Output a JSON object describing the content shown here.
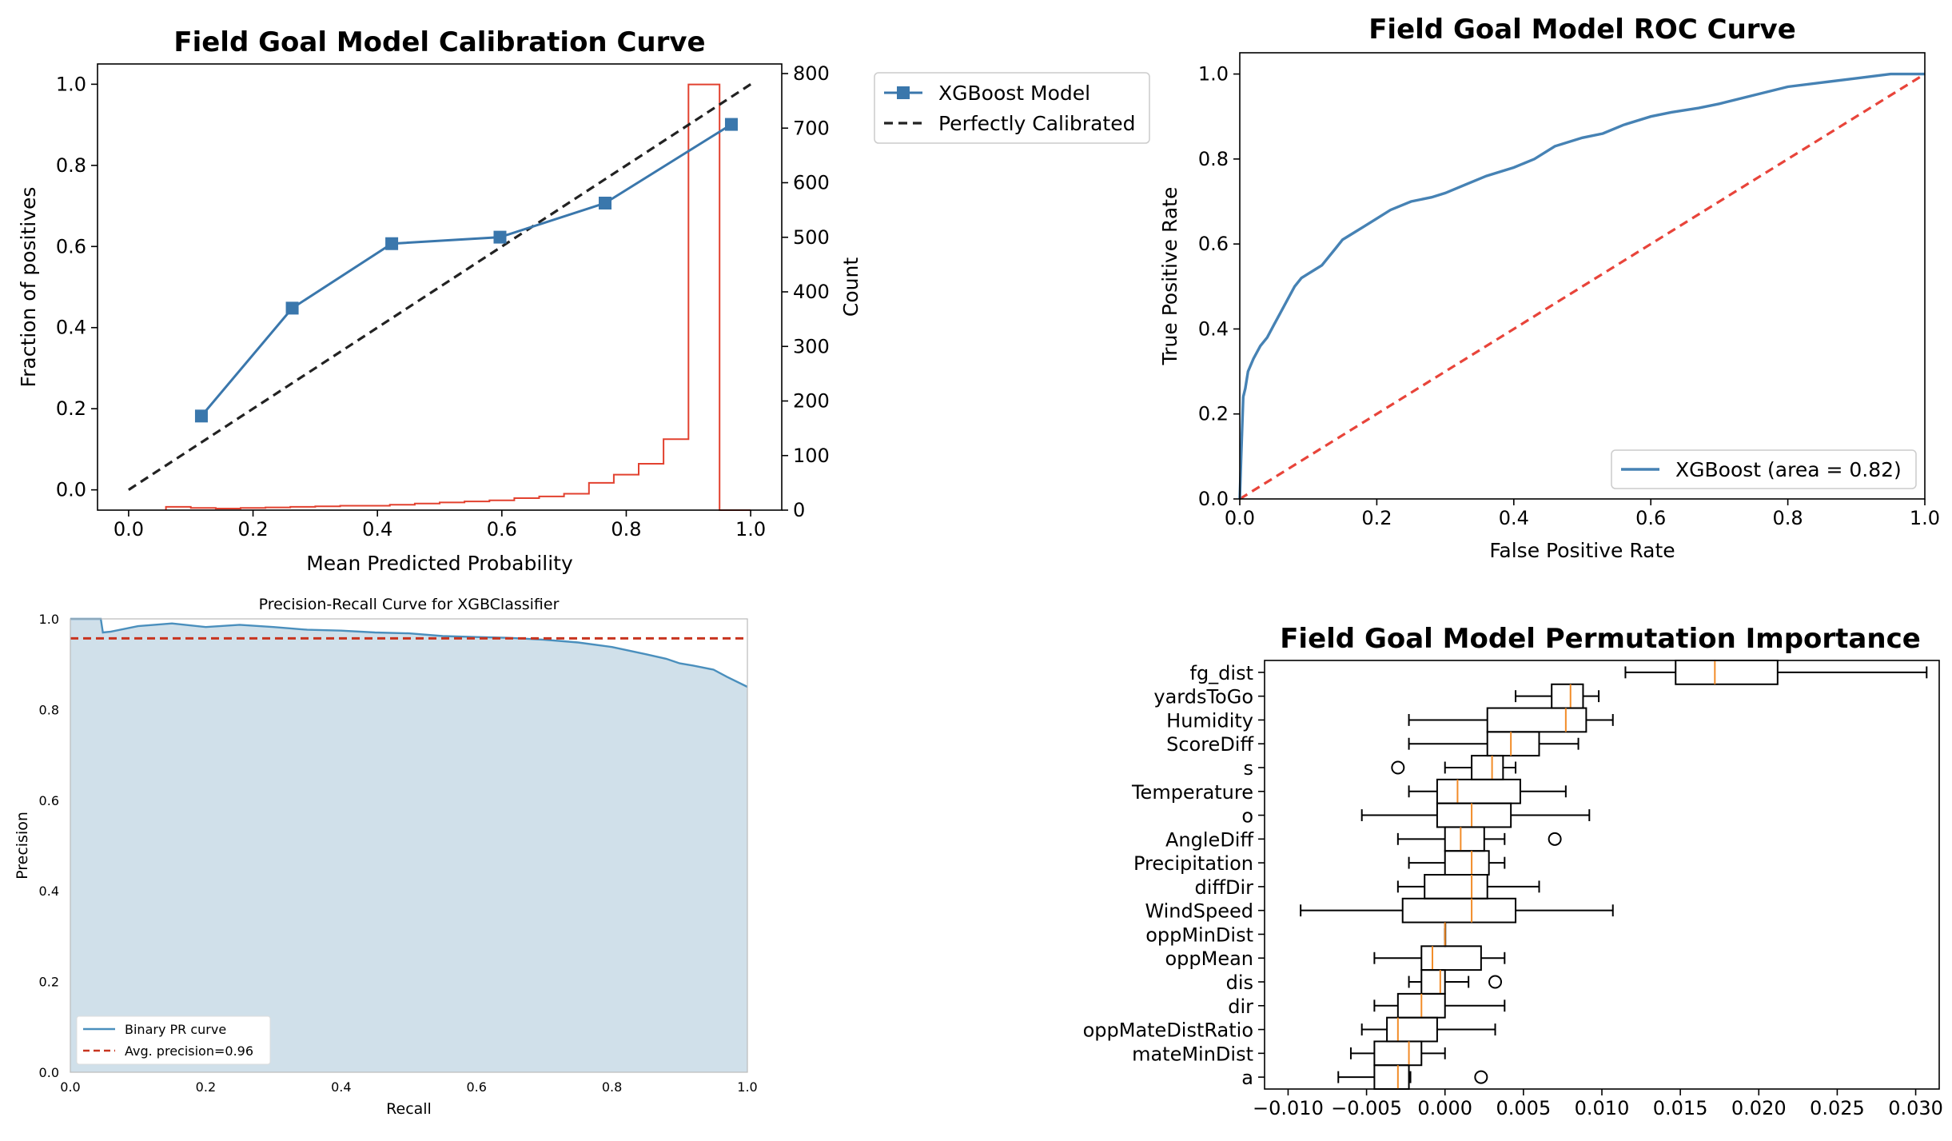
{
  "chart_data": [
    {
      "type": "line",
      "title": "Field Goal Model Calibration Curve",
      "xlabel": "Mean Predicted Probability",
      "ylabel": "Fraction of positives",
      "y2label": "Count",
      "xlim": [
        -0.05,
        1.05
      ],
      "ylim": [
        -0.05,
        1.05
      ],
      "y2lim": [
        0,
        800
      ],
      "xticks": [
        "0.0",
        "0.2",
        "0.4",
        "0.6",
        "0.8",
        "1.0"
      ],
      "yticks": [
        "0.0",
        "0.2",
        "0.4",
        "0.6",
        "0.8",
        "1.0"
      ],
      "y2ticks": [
        "0",
        "100",
        "200",
        "300",
        "400",
        "500",
        "600",
        "700",
        "800"
      ],
      "legend_position": "outside-right",
      "series": [
        {
          "name": "XGBoost Model",
          "color": "#3a77ac",
          "marker": "square",
          "x": [
            0.117,
            0.263,
            0.423,
            0.597,
            0.766,
            0.969
          ],
          "y": [
            0.182,
            0.448,
            0.607,
            0.623,
            0.707,
            0.901
          ]
        },
        {
          "name": "Perfectly Calibrated",
          "color": "#222222",
          "dash": "dashed",
          "x": [
            0.0,
            1.0
          ],
          "y": [
            0.0,
            1.0
          ]
        }
      ],
      "histogram": {
        "color": "#e2412f",
        "bin_edges": [
          0.06,
          0.1,
          0.14,
          0.18,
          0.22,
          0.26,
          0.3,
          0.34,
          0.38,
          0.42,
          0.46,
          0.5,
          0.54,
          0.58,
          0.62,
          0.66,
          0.7,
          0.74,
          0.78,
          0.82,
          0.86,
          0.9,
          0.95,
          1.0
        ],
        "counts": [
          6,
          4,
          3,
          4,
          5,
          6,
          7,
          8,
          8,
          10,
          12,
          14,
          16,
          18,
          22,
          25,
          30,
          50,
          65,
          85,
          130,
          780,
          0
        ]
      }
    },
    {
      "type": "line",
      "title": "Field Goal Model ROC Curve",
      "xlabel": "False Positive Rate",
      "ylabel": "True Positive Rate",
      "xlim": [
        0,
        1
      ],
      "ylim": [
        0,
        1.05
      ],
      "xticks": [
        "0.0",
        "0.2",
        "0.4",
        "0.6",
        "0.8",
        "1.0"
      ],
      "yticks": [
        "0.0",
        "0.2",
        "0.4",
        "0.6",
        "0.8",
        "1.0"
      ],
      "legend_position": "lower-right",
      "series": [
        {
          "name": "XGBoost (area = 0.82)",
          "color": "#4682b4",
          "x": [
            0,
            0.002,
            0.005,
            0.008,
            0.012,
            0.02,
            0.03,
            0.04,
            0.05,
            0.06,
            0.07,
            0.08,
            0.09,
            0.1,
            0.11,
            0.12,
            0.13,
            0.14,
            0.15,
            0.16,
            0.18,
            0.2,
            0.22,
            0.25,
            0.28,
            0.3,
            0.33,
            0.36,
            0.4,
            0.43,
            0.46,
            0.5,
            0.53,
            0.56,
            0.6,
            0.63,
            0.67,
            0.7,
            0.75,
            0.8,
            0.85,
            0.9,
            0.95,
            1.0
          ],
          "y": [
            0,
            0.1,
            0.24,
            0.26,
            0.3,
            0.33,
            0.36,
            0.38,
            0.41,
            0.44,
            0.47,
            0.5,
            0.52,
            0.53,
            0.54,
            0.55,
            0.57,
            0.59,
            0.61,
            0.62,
            0.64,
            0.66,
            0.68,
            0.7,
            0.71,
            0.72,
            0.74,
            0.76,
            0.78,
            0.8,
            0.83,
            0.85,
            0.86,
            0.88,
            0.9,
            0.91,
            0.92,
            0.93,
            0.95,
            0.97,
            0.98,
            0.99,
            1.0,
            1.0
          ]
        },
        {
          "name": "",
          "color": "#e8443a",
          "dash": "dashed",
          "x": [
            0,
            1
          ],
          "y": [
            0,
            1
          ]
        }
      ]
    },
    {
      "type": "area",
      "title": "Precision-Recall Curve for XGBClassifier",
      "xlabel": "Recall",
      "ylabel": "Precision",
      "xlim": [
        0,
        1
      ],
      "ylim": [
        0,
        1
      ],
      "xticks": [
        "0.0",
        "0.2",
        "0.4",
        "0.6",
        "0.8",
        "1.0"
      ],
      "yticks": [
        "0.0",
        "0.2",
        "0.4",
        "0.6",
        "0.8",
        "1.0"
      ],
      "legend_position": "lower-left",
      "fill_color": "#d0e0ea",
      "series": [
        {
          "name": "Binary PR curve",
          "color": "#4a8fbd",
          "x": [
            0.0,
            0.045,
            0.048,
            0.06,
            0.1,
            0.15,
            0.2,
            0.25,
            0.3,
            0.35,
            0.4,
            0.45,
            0.5,
            0.55,
            0.6,
            0.65,
            0.7,
            0.75,
            0.8,
            0.85,
            0.88,
            0.9,
            0.92,
            0.95,
            0.97,
            1.0
          ],
          "y": [
            1.0,
            1.0,
            0.97,
            0.972,
            0.984,
            0.99,
            0.982,
            0.987,
            0.982,
            0.976,
            0.974,
            0.97,
            0.968,
            0.962,
            0.96,
            0.958,
            0.954,
            0.948,
            0.938,
            0.922,
            0.912,
            0.902,
            0.897,
            0.888,
            0.872,
            0.85
          ]
        },
        {
          "name": "Avg. precision=0.96",
          "color": "#c8341f",
          "dash": "dashed",
          "x": [
            0,
            1
          ],
          "y": [
            0.957,
            0.957
          ]
        }
      ]
    },
    {
      "type": "boxplot",
      "title": "Field Goal Model Permutation Importance",
      "xlim": [
        -0.0115,
        0.0315
      ],
      "xticks": [
        "−0.010",
        "−0.005",
        "0.000",
        "0.005",
        "0.010",
        "0.015",
        "0.020",
        "0.025",
        "0.030"
      ],
      "box_color": "#000000",
      "median_color": "#f28c28",
      "categories": [
        "fg_dist",
        "yardsToGo",
        "Humidity",
        "ScoreDiff",
        "s",
        "Temperature",
        "o",
        "AngleDiff",
        "Precipitation",
        "diffDir",
        "WindSpeed",
        "oppMinDist",
        "oppMean",
        "dis",
        "dir",
        "oppMateDistRatio",
        "mateMinDist",
        "a"
      ],
      "boxes": [
        {
          "min": 0.0115,
          "q1": 0.0147,
          "median": 0.0172,
          "q3": 0.0212,
          "max": 0.0307,
          "outliers": []
        },
        {
          "min": 0.0045,
          "q1": 0.0068,
          "median": 0.008,
          "q3": 0.0088,
          "max": 0.0098,
          "outliers": []
        },
        {
          "min": -0.0023,
          "q1": 0.0027,
          "median": 0.0077,
          "q3": 0.009,
          "max": 0.0107,
          "outliers": []
        },
        {
          "min": -0.0023,
          "q1": 0.0027,
          "median": 0.0042,
          "q3": 0.006,
          "max": 0.0085,
          "outliers": []
        },
        {
          "min": 0.0,
          "q1": 0.0017,
          "median": 0.003,
          "q3": 0.0037,
          "max": 0.0045,
          "outliers": [
            -0.003
          ]
        },
        {
          "min": -0.0023,
          "q1": -0.0005,
          "median": 0.0008,
          "q3": 0.0048,
          "max": 0.0077,
          "outliers": []
        },
        {
          "min": -0.0053,
          "q1": -0.0005,
          "median": 0.0017,
          "q3": 0.0042,
          "max": 0.0092,
          "outliers": []
        },
        {
          "min": -0.003,
          "q1": 0.0,
          "median": 0.001,
          "q3": 0.0025,
          "max": 0.0038,
          "outliers": [
            0.007
          ]
        },
        {
          "min": -0.0023,
          "q1": 0.0,
          "median": 0.0017,
          "q3": 0.0028,
          "max": 0.0038,
          "outliers": []
        },
        {
          "min": -0.003,
          "q1": -0.0013,
          "median": 0.0017,
          "q3": 0.0027,
          "max": 0.006,
          "outliers": []
        },
        {
          "min": -0.0092,
          "q1": -0.0027,
          "median": 0.0017,
          "q3": 0.0045,
          "max": 0.0107,
          "outliers": []
        },
        {
          "min": 0.0,
          "q1": 0.0,
          "median": 0.0,
          "q3": 0.0,
          "max": 0.0,
          "outliers": []
        },
        {
          "min": -0.0045,
          "q1": -0.0015,
          "median": -0.0008,
          "q3": 0.0023,
          "max": 0.0038,
          "outliers": []
        },
        {
          "min": -0.0023,
          "q1": -0.0015,
          "median": -0.0003,
          "q3": 0.0,
          "max": 0.0015,
          "outliers": [
            0.0032
          ]
        },
        {
          "min": -0.0045,
          "q1": -0.003,
          "median": -0.0015,
          "q3": 0.0,
          "max": 0.0038,
          "outliers": []
        },
        {
          "min": -0.0053,
          "q1": -0.0037,
          "median": -0.003,
          "q3": -0.0005,
          "max": 0.0032,
          "outliers": []
        },
        {
          "min": -0.006,
          "q1": -0.0045,
          "median": -0.0023,
          "q3": -0.0015,
          "max": 0.0,
          "outliers": []
        },
        {
          "min": -0.0068,
          "q1": -0.0045,
          "median": -0.003,
          "q3": -0.0023,
          "max": -0.0022,
          "outliers": [
            0.0023
          ]
        }
      ]
    }
  ]
}
